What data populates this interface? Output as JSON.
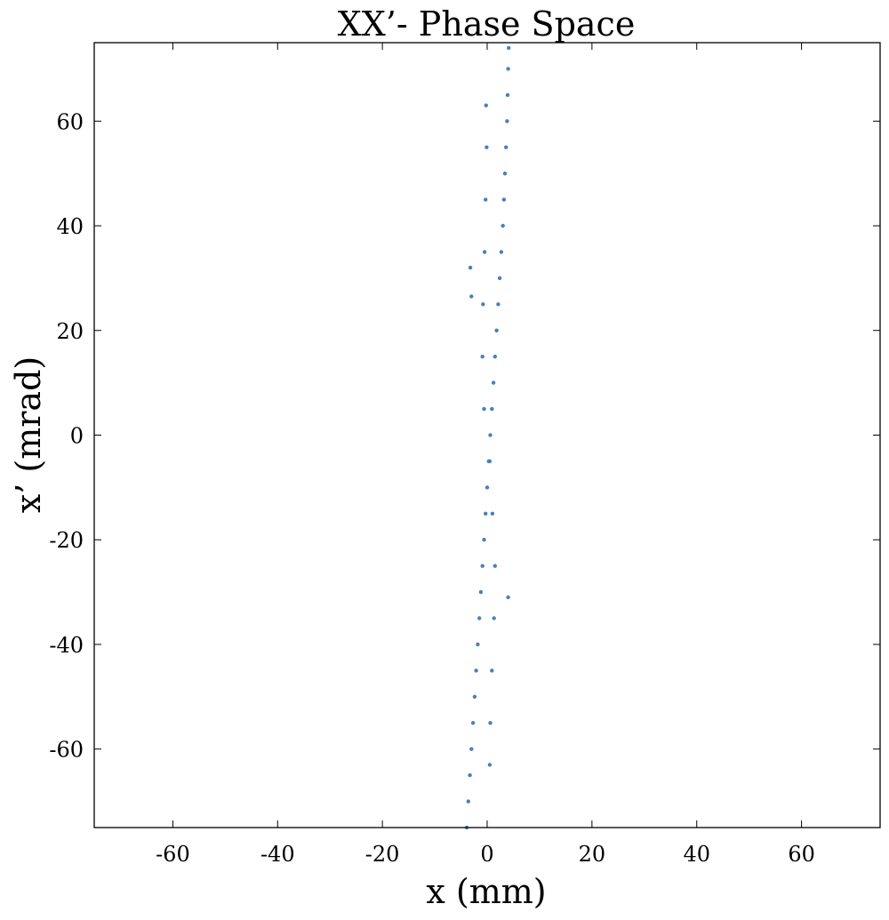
{
  "chart_data": {
    "type": "scatter",
    "title": "XX’- Phase Space",
    "xlabel": "x (mm)",
    "ylabel": "x’ (mrad)",
    "xlim": [
      -75,
      75
    ],
    "ylim": [
      -75,
      75
    ],
    "x_ticks": [
      -60,
      -40,
      -20,
      0,
      20,
      40,
      60
    ],
    "y_ticks": [
      -60,
      -40,
      -20,
      0,
      20,
      40,
      60
    ],
    "x_tick_labels": [
      "-60",
      "-40",
      "-20",
      "0",
      "20",
      "40",
      "60"
    ],
    "y_tick_labels": [
      "-60",
      "-40",
      "-20",
      "0",
      "20",
      "40",
      "60"
    ],
    "grid": false,
    "legend": "none",
    "marker_color": "#4a7fbd",
    "series": [
      {
        "points": [
          [
            -3.9,
            -75
          ],
          [
            -3.6,
            -70
          ],
          [
            -3.3,
            -65
          ],
          [
            -3.0,
            -60
          ],
          [
            -2.7,
            -55
          ],
          [
            -2.4,
            -50
          ],
          [
            -2.1,
            -45
          ],
          [
            -1.8,
            -40
          ],
          [
            -1.5,
            -35
          ],
          [
            -1.2,
            -30
          ],
          [
            -0.9,
            -25
          ],
          [
            -0.6,
            -20
          ],
          [
            -0.3,
            -15
          ],
          [
            0.0,
            -10
          ],
          [
            0.3,
            -5
          ],
          [
            0.6,
            0
          ],
          [
            0.9,
            5
          ],
          [
            1.2,
            10
          ],
          [
            1.5,
            15
          ],
          [
            1.8,
            20
          ],
          [
            2.1,
            25
          ],
          [
            2.4,
            30
          ],
          [
            2.7,
            35
          ],
          [
            3.0,
            40
          ],
          [
            3.2,
            45
          ],
          [
            3.4,
            50
          ],
          [
            3.6,
            55
          ],
          [
            3.8,
            60
          ],
          [
            3.9,
            65
          ],
          [
            4.0,
            70
          ],
          [
            4.1,
            74
          ],
          [
            -0.2,
            63
          ],
          [
            -0.1,
            55
          ],
          [
            -0.3,
            45
          ],
          [
            -0.5,
            35
          ],
          [
            -0.8,
            25
          ],
          [
            -0.9,
            15
          ],
          [
            -0.6,
            5
          ],
          [
            0.5,
            -5
          ],
          [
            1.0,
            -15
          ],
          [
            1.5,
            -25
          ],
          [
            1.3,
            -35
          ],
          [
            0.9,
            -45
          ],
          [
            0.6,
            -55
          ],
          [
            0.5,
            -63
          ],
          [
            -3.2,
            32
          ],
          [
            -3.0,
            26.5
          ],
          [
            4.0,
            -31
          ]
        ]
      }
    ]
  }
}
